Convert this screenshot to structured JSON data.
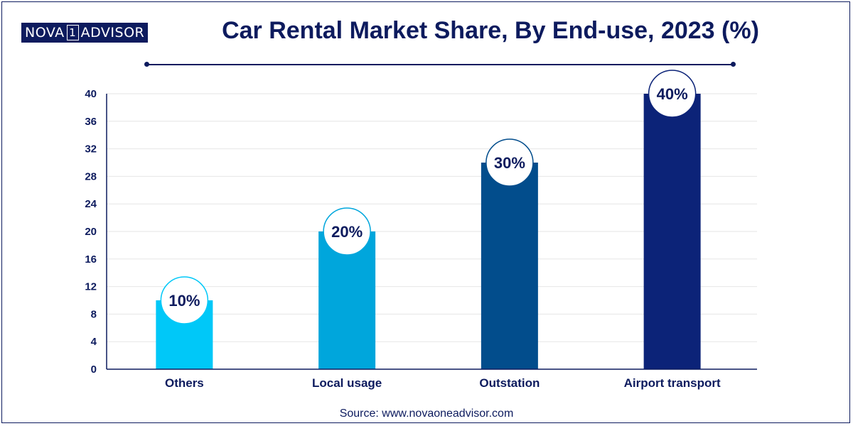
{
  "brand": {
    "part1": "NOVA",
    "part2": "1",
    "part3": "ADVISOR"
  },
  "source_text": "Source: www.novaoneadvisor.com",
  "chart_data": {
    "type": "bar",
    "title": "Car Rental Market Share, By End-use, 2023 (%)",
    "xlabel": "",
    "ylabel": "",
    "categories": [
      "Others",
      "Local usage",
      "Outstation",
      "Airport transport"
    ],
    "values": [
      10,
      20,
      30,
      40
    ],
    "data_labels": [
      "10%",
      "20%",
      "30%",
      "40%"
    ],
    "bar_colors": [
      "#00c8f8",
      "#00a6dc",
      "#024d8c",
      "#0c2378"
    ],
    "ylim": [
      0,
      40
    ],
    "yticks": [
      0,
      4,
      8,
      12,
      16,
      20,
      24,
      28,
      32,
      36,
      40
    ],
    "grid": true,
    "legend": "none"
  }
}
